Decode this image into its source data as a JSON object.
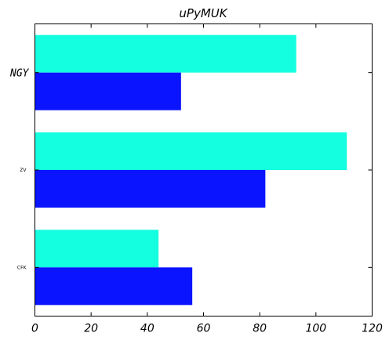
{
  "chart_data": {
    "type": "bar",
    "orientation": "horizontal",
    "title": "uPyMUK",
    "categories": [
      "NGY",
      "ZV",
      "CFK"
    ],
    "series": [
      {
        "values": [
          93,
          111,
          44
        ],
        "color": "#14ffe0"
      },
      {
        "values": [
          52,
          82,
          56
        ],
        "color": "#0a14ff"
      }
    ],
    "xlim": [
      0,
      120
    ],
    "xticks": [
      0,
      20,
      40,
      60,
      80,
      100,
      120
    ],
    "xlabel": "",
    "ylabel": "",
    "grid": false
  }
}
